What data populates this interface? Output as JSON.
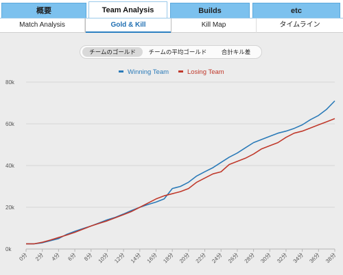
{
  "top_tabs": [
    {
      "label": "概要"
    },
    {
      "label": "Team Analysis"
    },
    {
      "label": "Builds"
    },
    {
      "label": "etc"
    }
  ],
  "sub_tabs": [
    {
      "label": "Match Analysis"
    },
    {
      "label": "Gold & Kill"
    },
    {
      "label": "Kill Map"
    },
    {
      "label": "タイムライン"
    }
  ],
  "toggles": [
    {
      "label": "チームのゴールド"
    },
    {
      "label": "チームの平均ゴールド"
    },
    {
      "label": "合計キル差"
    }
  ],
  "colors": {
    "winning": "#2a7ab8",
    "losing": "#c0392b",
    "tab_blue": "#7cc1ee",
    "accent": "#2a7fc1"
  },
  "chart_data": {
    "type": "line",
    "legend_position": "top-center",
    "grid": true,
    "ylim": [
      0,
      80000
    ],
    "xlim": [
      0,
      38
    ],
    "y_ticks": [
      {
        "value": 0,
        "label": "0k"
      },
      {
        "value": 20000,
        "label": "20k"
      },
      {
        "value": 40000,
        "label": "40k"
      },
      {
        "value": 60000,
        "label": "60k"
      },
      {
        "value": 80000,
        "label": "80k"
      }
    ],
    "x_ticks": [
      {
        "value": 0,
        "label": "0分"
      },
      {
        "value": 2,
        "label": "2分"
      },
      {
        "value": 4,
        "label": "4分"
      },
      {
        "value": 6,
        "label": "6分"
      },
      {
        "value": 8,
        "label": "8分"
      },
      {
        "value": 10,
        "label": "10分"
      },
      {
        "value": 12,
        "label": "12分"
      },
      {
        "value": 14,
        "label": "14分"
      },
      {
        "value": 16,
        "label": "16分"
      },
      {
        "value": 18,
        "label": "18分"
      },
      {
        "value": 20,
        "label": "20分"
      },
      {
        "value": 22,
        "label": "22分"
      },
      {
        "value": 24,
        "label": "24分"
      },
      {
        "value": 26,
        "label": "26分"
      },
      {
        "value": 28,
        "label": "28分"
      },
      {
        "value": 30,
        "label": "30分"
      },
      {
        "value": 32,
        "label": "32分"
      },
      {
        "value": 34,
        "label": "34分"
      },
      {
        "value": 36,
        "label": "36分"
      },
      {
        "value": 38,
        "label": "38分"
      }
    ],
    "x": [
      0,
      1,
      2,
      3,
      4,
      5,
      6,
      7,
      8,
      9,
      10,
      11,
      12,
      13,
      14,
      15,
      16,
      17,
      18,
      19,
      20,
      21,
      22,
      23,
      24,
      25,
      26,
      27,
      28,
      29,
      30,
      31,
      32,
      33,
      34,
      35,
      36,
      37,
      38
    ],
    "series": [
      {
        "name": "Winning Team",
        "color": "#2a7ab8",
        "values": [
          2500,
          2500,
          3000,
          4000,
          5000,
          7000,
          8500,
          9800,
          11000,
          12500,
          14000,
          15200,
          16800,
          18500,
          20000,
          21300,
          22500,
          24000,
          29000,
          30000,
          32000,
          35000,
          37000,
          39000,
          41500,
          44000,
          46000,
          48500,
          51000,
          52500,
          54000,
          55500,
          56500,
          57800,
          59500,
          62000,
          64000,
          67000,
          71000
        ]
      },
      {
        "name": "Losing Team",
        "color": "#c0392b",
        "values": [
          2500,
          2500,
          3200,
          4300,
          5500,
          6700,
          8000,
          9500,
          11000,
          12300,
          13500,
          15000,
          16500,
          18000,
          20000,
          22000,
          24000,
          25500,
          26500,
          27500,
          29000,
          32000,
          34000,
          36000,
          37000,
          40500,
          42000,
          43500,
          45500,
          48000,
          49500,
          51000,
          53500,
          55500,
          56500,
          58000,
          59500,
          61000,
          62500
        ]
      }
    ]
  }
}
